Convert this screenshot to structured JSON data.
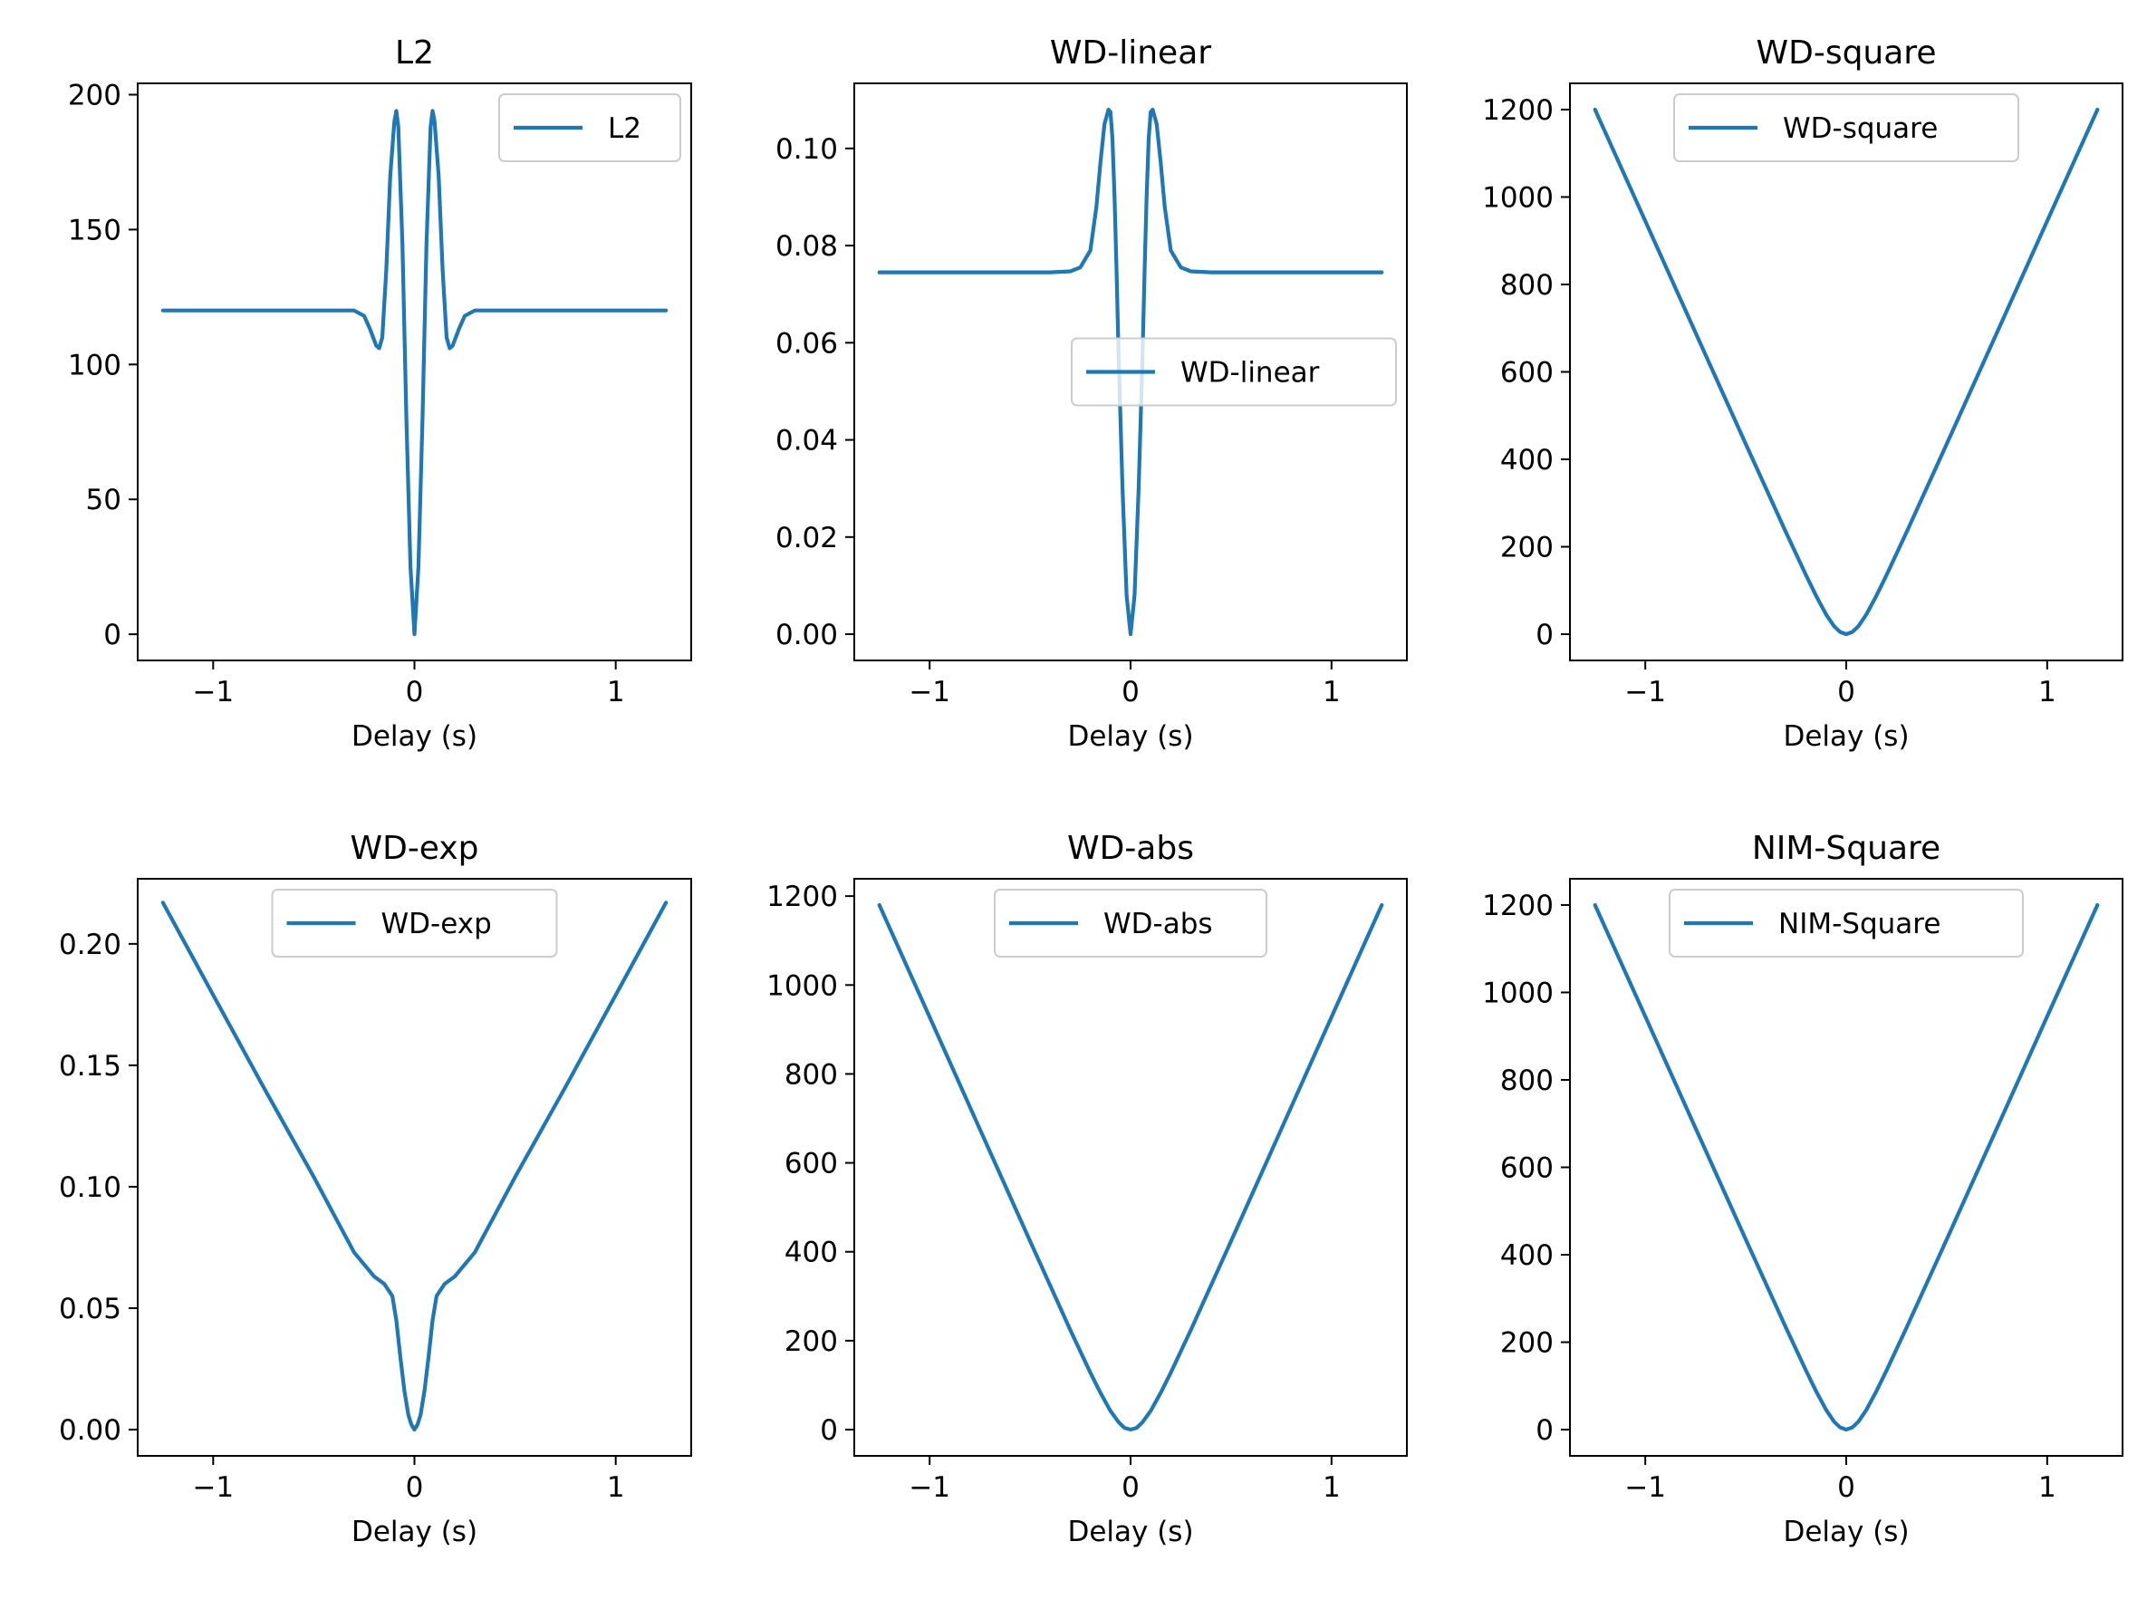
{
  "figure": {
    "series_color": "#1f77b4",
    "panels": [
      {
        "title": "L2",
        "legend_label": "L2",
        "legend_position": "upper right",
        "xlabel": "Delay (s)",
        "xticks": [
          -1,
          0,
          1
        ],
        "xtick_labels": [
          "−1",
          "0",
          "1"
        ],
        "yticks": [
          0,
          50,
          100,
          150,
          200
        ],
        "ytick_labels": [
          "0",
          "50",
          "100",
          "150",
          "200"
        ],
        "xlim": [
          -1.375,
          1.375
        ],
        "ylim": [
          -9.7,
          204.2
        ]
      },
      {
        "title": "WD-linear",
        "legend_label": "WD-linear",
        "legend_position": "center right",
        "xlabel": "Delay (s)",
        "xticks": [
          -1,
          0,
          1
        ],
        "xtick_labels": [
          "−1",
          "0",
          "1"
        ],
        "yticks": [
          0,
          0.02,
          0.04,
          0.06,
          0.08,
          0.1
        ],
        "ytick_labels": [
          "0.00",
          "0.02",
          "0.04",
          "0.06",
          "0.08",
          "0.10"
        ],
        "xlim": [
          -1.375,
          1.375
        ],
        "ylim": [
          -0.0054,
          0.1134
        ]
      },
      {
        "title": "WD-square",
        "legend_label": "WD-square",
        "legend_position": "upper center",
        "xlabel": "Delay (s)",
        "xticks": [
          -1,
          0,
          1
        ],
        "xtick_labels": [
          "−1",
          "0",
          "1"
        ],
        "yticks": [
          0,
          200,
          400,
          600,
          800,
          1000,
          1200
        ],
        "ytick_labels": [
          "0",
          "200",
          "400",
          "600",
          "800",
          "1000",
          "1200"
        ],
        "xlim": [
          -1.375,
          1.375
        ],
        "ylim": [
          -60,
          1260
        ]
      },
      {
        "title": "WD-exp",
        "legend_label": "WD-exp",
        "legend_position": "upper center",
        "xlabel": "Delay (s)",
        "xticks": [
          -1,
          0,
          1
        ],
        "xtick_labels": [
          "−1",
          "0",
          "1"
        ],
        "yticks": [
          0,
          0.05,
          0.1,
          0.15,
          0.2
        ],
        "ytick_labels": [
          "0.00",
          "0.05",
          "0.10",
          "0.15",
          "0.20"
        ],
        "xlim": [
          -1.375,
          1.375
        ],
        "ylim": [
          -0.0108,
          0.2268
        ]
      },
      {
        "title": "WD-abs",
        "legend_label": "WD-abs",
        "legend_position": "upper center",
        "xlabel": "Delay (s)",
        "xticks": [
          -1,
          0,
          1
        ],
        "xtick_labels": [
          "−1",
          "0",
          "1"
        ],
        "yticks": [
          0,
          200,
          400,
          600,
          800,
          1000,
          1200
        ],
        "ytick_labels": [
          "0",
          "200",
          "400",
          "600",
          "800",
          "1000",
          "1200"
        ],
        "xlim": [
          -1.375,
          1.375
        ],
        "ylim": [
          -59,
          1239
        ]
      },
      {
        "title": "NIM-Square",
        "legend_label": "NIM-Square",
        "legend_position": "upper center",
        "xlabel": "Delay (s)",
        "xticks": [
          -1,
          0,
          1
        ],
        "xtick_labels": [
          "−1",
          "0",
          "1"
        ],
        "yticks": [
          0,
          200,
          400,
          600,
          800,
          1000,
          1200
        ],
        "ytick_labels": [
          "0",
          "200",
          "400",
          "600",
          "800",
          "1000",
          "1200"
        ],
        "xlim": [
          -1.375,
          1.375
        ],
        "ylim": [
          -60,
          1260
        ]
      }
    ]
  },
  "chart_data": [
    {
      "type": "line",
      "title": "L2",
      "xlabel": "Delay (s)",
      "ylabel": "",
      "xlim": [
        -1.375,
        1.375
      ],
      "ylim": [
        -9.7,
        204.2
      ],
      "series": [
        {
          "name": "L2",
          "x": [
            -1.25,
            -0.5,
            -0.3,
            -0.25,
            -0.22,
            -0.19,
            -0.175,
            -0.16,
            -0.14,
            -0.12,
            -0.1,
            -0.09,
            -0.08,
            -0.06,
            -0.04,
            -0.02,
            0,
            0.02,
            0.04,
            0.06,
            0.08,
            0.09,
            0.1,
            0.12,
            0.14,
            0.16,
            0.175,
            0.19,
            0.22,
            0.25,
            0.3,
            0.5,
            1.25
          ],
          "y": [
            120,
            120,
            120,
            118,
            113,
            107,
            106,
            110,
            135,
            170,
            190,
            194,
            188,
            145,
            80,
            25,
            0,
            25,
            80,
            145,
            188,
            194,
            190,
            170,
            135,
            110,
            106,
            107,
            113,
            118,
            120,
            120,
            120
          ]
        }
      ]
    },
    {
      "type": "line",
      "title": "WD-linear",
      "xlabel": "Delay (s)",
      "ylabel": "",
      "xlim": [
        -1.375,
        1.375
      ],
      "ylim": [
        -0.0054,
        0.1134
      ],
      "series": [
        {
          "name": "WD-linear",
          "x": [
            -1.25,
            -0.4,
            -0.3,
            -0.25,
            -0.2,
            -0.17,
            -0.15,
            -0.13,
            -0.11,
            -0.1,
            -0.09,
            -0.08,
            -0.07,
            -0.06,
            -0.04,
            -0.02,
            0,
            0.02,
            0.04,
            0.06,
            0.07,
            0.08,
            0.09,
            0.1,
            0.11,
            0.13,
            0.15,
            0.17,
            0.2,
            0.25,
            0.3,
            0.4,
            1.25
          ],
          "y": [
            0.0745,
            0.0745,
            0.0747,
            0.0755,
            0.079,
            0.088,
            0.097,
            0.105,
            0.108,
            0.1075,
            0.102,
            0.09,
            0.075,
            0.058,
            0.03,
            0.008,
            0.0,
            0.008,
            0.03,
            0.058,
            0.075,
            0.09,
            0.102,
            0.1075,
            0.108,
            0.105,
            0.097,
            0.088,
            0.079,
            0.0755,
            0.0747,
            0.0745,
            0.0745
          ]
        }
      ]
    },
    {
      "type": "line",
      "title": "WD-square",
      "xlabel": "Delay (s)",
      "ylabel": "",
      "xlim": [
        -1.375,
        1.375
      ],
      "ylim": [
        -60,
        1260
      ],
      "series": [
        {
          "name": "WD-square",
          "x": [
            -1.25,
            -1.0,
            -0.75,
            -0.5,
            -0.3,
            -0.2,
            -0.15,
            -0.1,
            -0.06,
            -0.03,
            0,
            0.03,
            0.06,
            0.1,
            0.15,
            0.2,
            0.3,
            0.5,
            0.75,
            1.0,
            1.25
          ],
          "y": [
            1200,
            945,
            690,
            435,
            233,
            135,
            88,
            45,
            18,
            5,
            0,
            5,
            18,
            45,
            88,
            135,
            233,
            435,
            690,
            945,
            1200
          ]
        }
      ]
    },
    {
      "type": "line",
      "title": "WD-exp",
      "xlabel": "Delay (s)",
      "ylabel": "",
      "xlim": [
        -1.375,
        1.375
      ],
      "ylim": [
        -0.0108,
        0.2268
      ],
      "series": [
        {
          "name": "WD-exp",
          "x": [
            -1.25,
            -1.0,
            -0.75,
            -0.5,
            -0.3,
            -0.2,
            -0.15,
            -0.11,
            -0.09,
            -0.07,
            -0.05,
            -0.03,
            -0.015,
            0,
            0.015,
            0.03,
            0.05,
            0.07,
            0.09,
            0.11,
            0.15,
            0.2,
            0.3,
            0.5,
            0.75,
            1.0,
            1.25
          ],
          "y": [
            0.217,
            0.179,
            0.141,
            0.104,
            0.073,
            0.063,
            0.06,
            0.055,
            0.045,
            0.03,
            0.016,
            0.006,
            0.002,
            0.0,
            0.002,
            0.006,
            0.016,
            0.03,
            0.045,
            0.055,
            0.06,
            0.063,
            0.073,
            0.104,
            0.141,
            0.179,
            0.217
          ]
        }
      ]
    },
    {
      "type": "line",
      "title": "WD-abs",
      "xlabel": "Delay (s)",
      "ylabel": "",
      "xlim": [
        -1.375,
        1.375
      ],
      "ylim": [
        -59,
        1239
      ],
      "series": [
        {
          "name": "WD-abs",
          "x": [
            -1.25,
            -1.0,
            -0.75,
            -0.5,
            -0.3,
            -0.2,
            -0.15,
            -0.1,
            -0.06,
            -0.03,
            0,
            0.03,
            0.06,
            0.1,
            0.15,
            0.2,
            0.3,
            0.5,
            0.75,
            1.0,
            1.25
          ],
          "y": [
            1180,
            928,
            676,
            424,
            224,
            128,
            83,
            42,
            17,
            4,
            0,
            4,
            17,
            42,
            83,
            128,
            224,
            424,
            676,
            928,
            1180
          ]
        }
      ]
    },
    {
      "type": "line",
      "title": "NIM-Square",
      "xlabel": "Delay (s)",
      "ylabel": "",
      "xlim": [
        -1.375,
        1.375
      ],
      "ylim": [
        -60,
        1260
      ],
      "series": [
        {
          "name": "NIM-Square",
          "x": [
            -1.25,
            -1.0,
            -0.75,
            -0.5,
            -0.3,
            -0.2,
            -0.15,
            -0.1,
            -0.06,
            -0.03,
            0,
            0.03,
            0.06,
            0.1,
            0.15,
            0.2,
            0.3,
            0.5,
            0.75,
            1.0,
            1.25
          ],
          "y": [
            1200,
            945,
            690,
            435,
            233,
            135,
            88,
            45,
            18,
            5,
            0,
            5,
            18,
            45,
            88,
            135,
            233,
            435,
            690,
            945,
            1200
          ]
        }
      ]
    }
  ]
}
